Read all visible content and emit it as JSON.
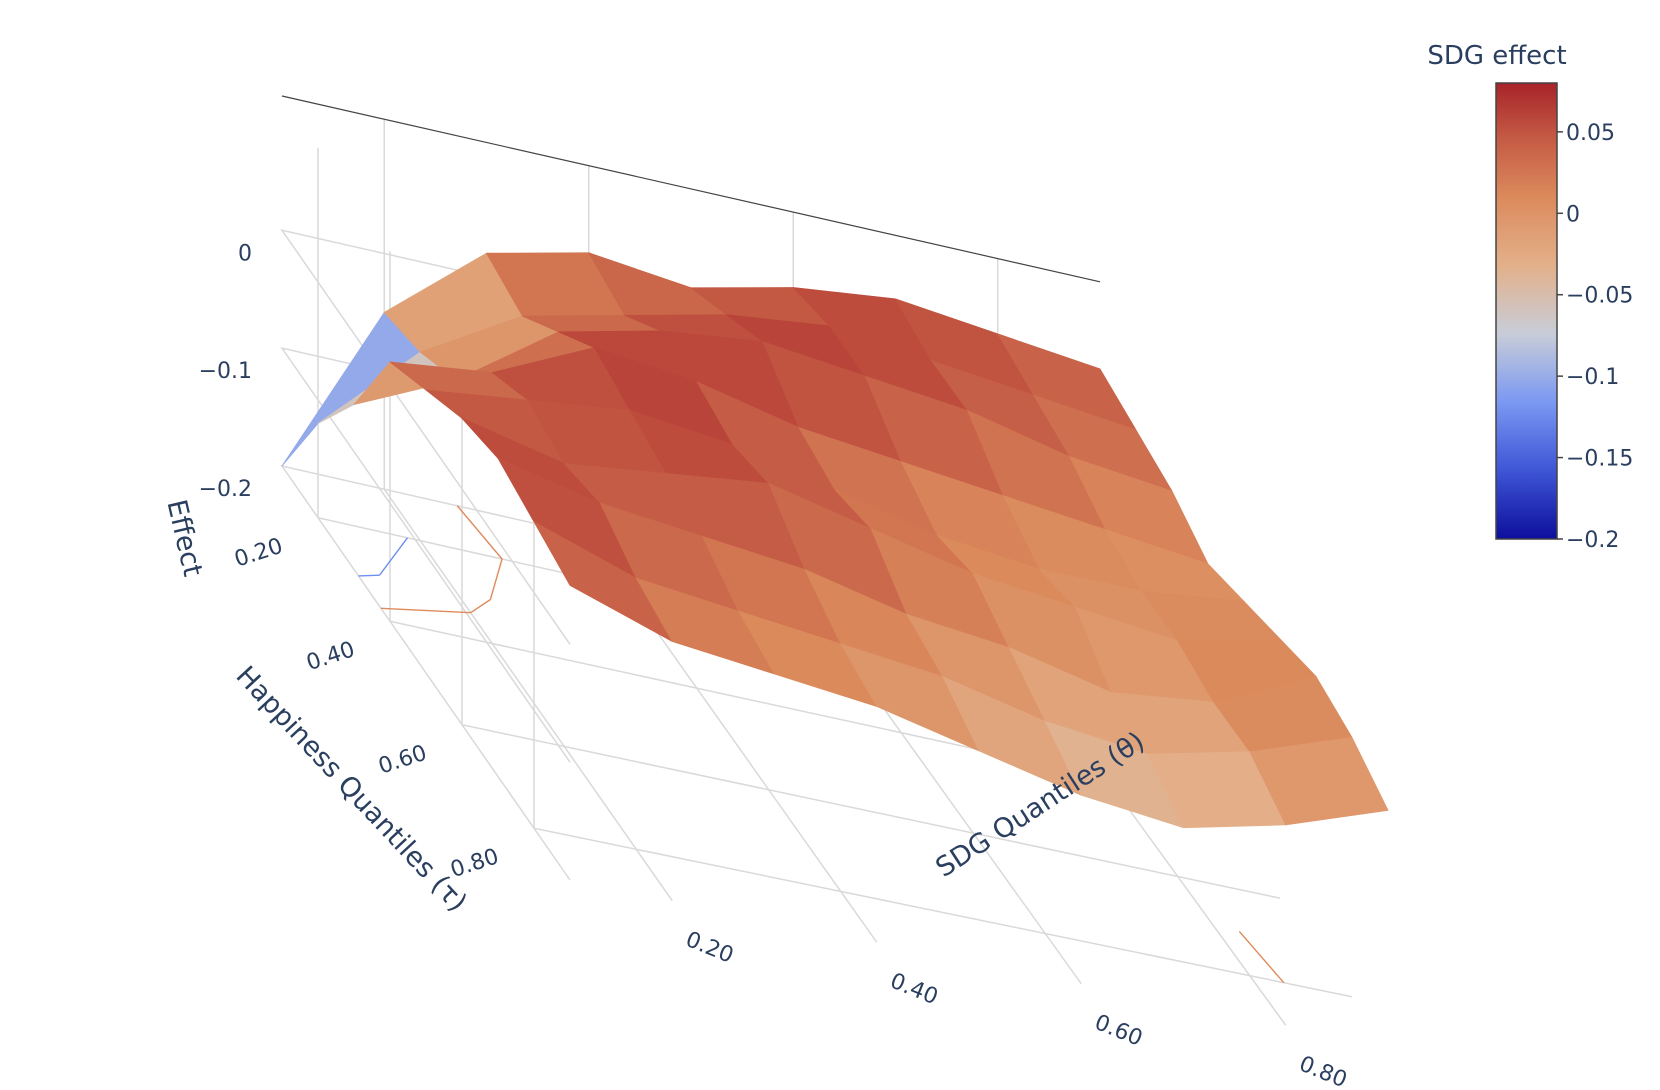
{
  "chart_data": {
    "type": "surface",
    "x_label": "SDG Quantiles (θ)",
    "y_label": "Happiness Quantiles (τ)",
    "z_label": "Effect",
    "colorbar_title": "SDG effect",
    "colorscale": [
      [
        0.0,
        "#0d0f9c"
      ],
      [
        0.15,
        "#3e55d6"
      ],
      [
        0.3,
        "#7b98f2"
      ],
      [
        0.45,
        "#c8cdd8"
      ],
      [
        0.6,
        "#e3b08a"
      ],
      [
        0.75,
        "#db8a5c"
      ],
      [
        0.88,
        "#c45a44"
      ],
      [
        1.0,
        "#a8232a"
      ]
    ],
    "zlim": [
      -0.2,
      0.08
    ],
    "x_ticks": [
      "0.20",
      "0.40",
      "0.60",
      "0.80"
    ],
    "x_tick_values": [
      0.2,
      0.4,
      0.6,
      0.8
    ],
    "y_ticks": [
      "0.20",
      "0.40",
      "0.60",
      "0.80"
    ],
    "y_tick_values": [
      0.2,
      0.4,
      0.6,
      0.8
    ],
    "z_ticks": [
      "0",
      "−0.1",
      "−0.2"
    ],
    "z_tick_values": [
      0,
      -0.1,
      -0.2
    ],
    "colorbar_ticks": [
      "0.05",
      "0",
      "−0.05",
      "−0.1",
      "−0.15",
      "−0.2"
    ],
    "colorbar_tick_values": [
      0.05,
      0,
      -0.05,
      -0.1,
      -0.15,
      -0.2
    ],
    "theta": [
      0.1,
      0.2,
      0.3,
      0.4,
      0.5,
      0.6,
      0.7,
      0.8,
      0.9
    ],
    "tau": [
      0.1,
      0.2,
      0.3,
      0.4,
      0.5,
      0.6,
      0.7,
      0.8,
      0.9
    ],
    "z": [
      [
        -0.2,
        -0.05,
        0.02,
        0.04,
        0.03,
        0.05,
        0.06,
        0.05,
        0.04
      ],
      [
        -0.12,
        -0.04,
        0.01,
        0.03,
        0.05,
        0.06,
        0.05,
        0.04,
        0.03
      ],
      [
        -0.06,
        -0.02,
        0.04,
        0.06,
        0.07,
        0.06,
        0.05,
        0.03,
        0.02
      ],
      [
        0.02,
        0.03,
        0.07,
        0.06,
        0.04,
        0.03,
        0.02,
        0.01,
        0.0
      ],
      [
        0.04,
        0.05,
        0.06,
        0.05,
        0.03,
        0.01,
        0.0,
        0.0,
        0.01
      ],
      [
        0.06,
        0.04,
        0.05,
        0.06,
        0.04,
        0.02,
        0.01,
        0.0,
        0.02
      ],
      [
        0.07,
        0.05,
        0.04,
        0.03,
        0.01,
        0.0,
        -0.02,
        -0.01,
        0.03
      ],
      [
        0.06,
        0.03,
        0.02,
        0.01,
        0.0,
        -0.02,
        -0.03,
        -0.01,
        0.02
      ],
      [
        0.05,
        0.02,
        0.01,
        0.0,
        -0.02,
        -0.04,
        -0.05,
        -0.03,
        0.0
      ]
    ]
  }
}
